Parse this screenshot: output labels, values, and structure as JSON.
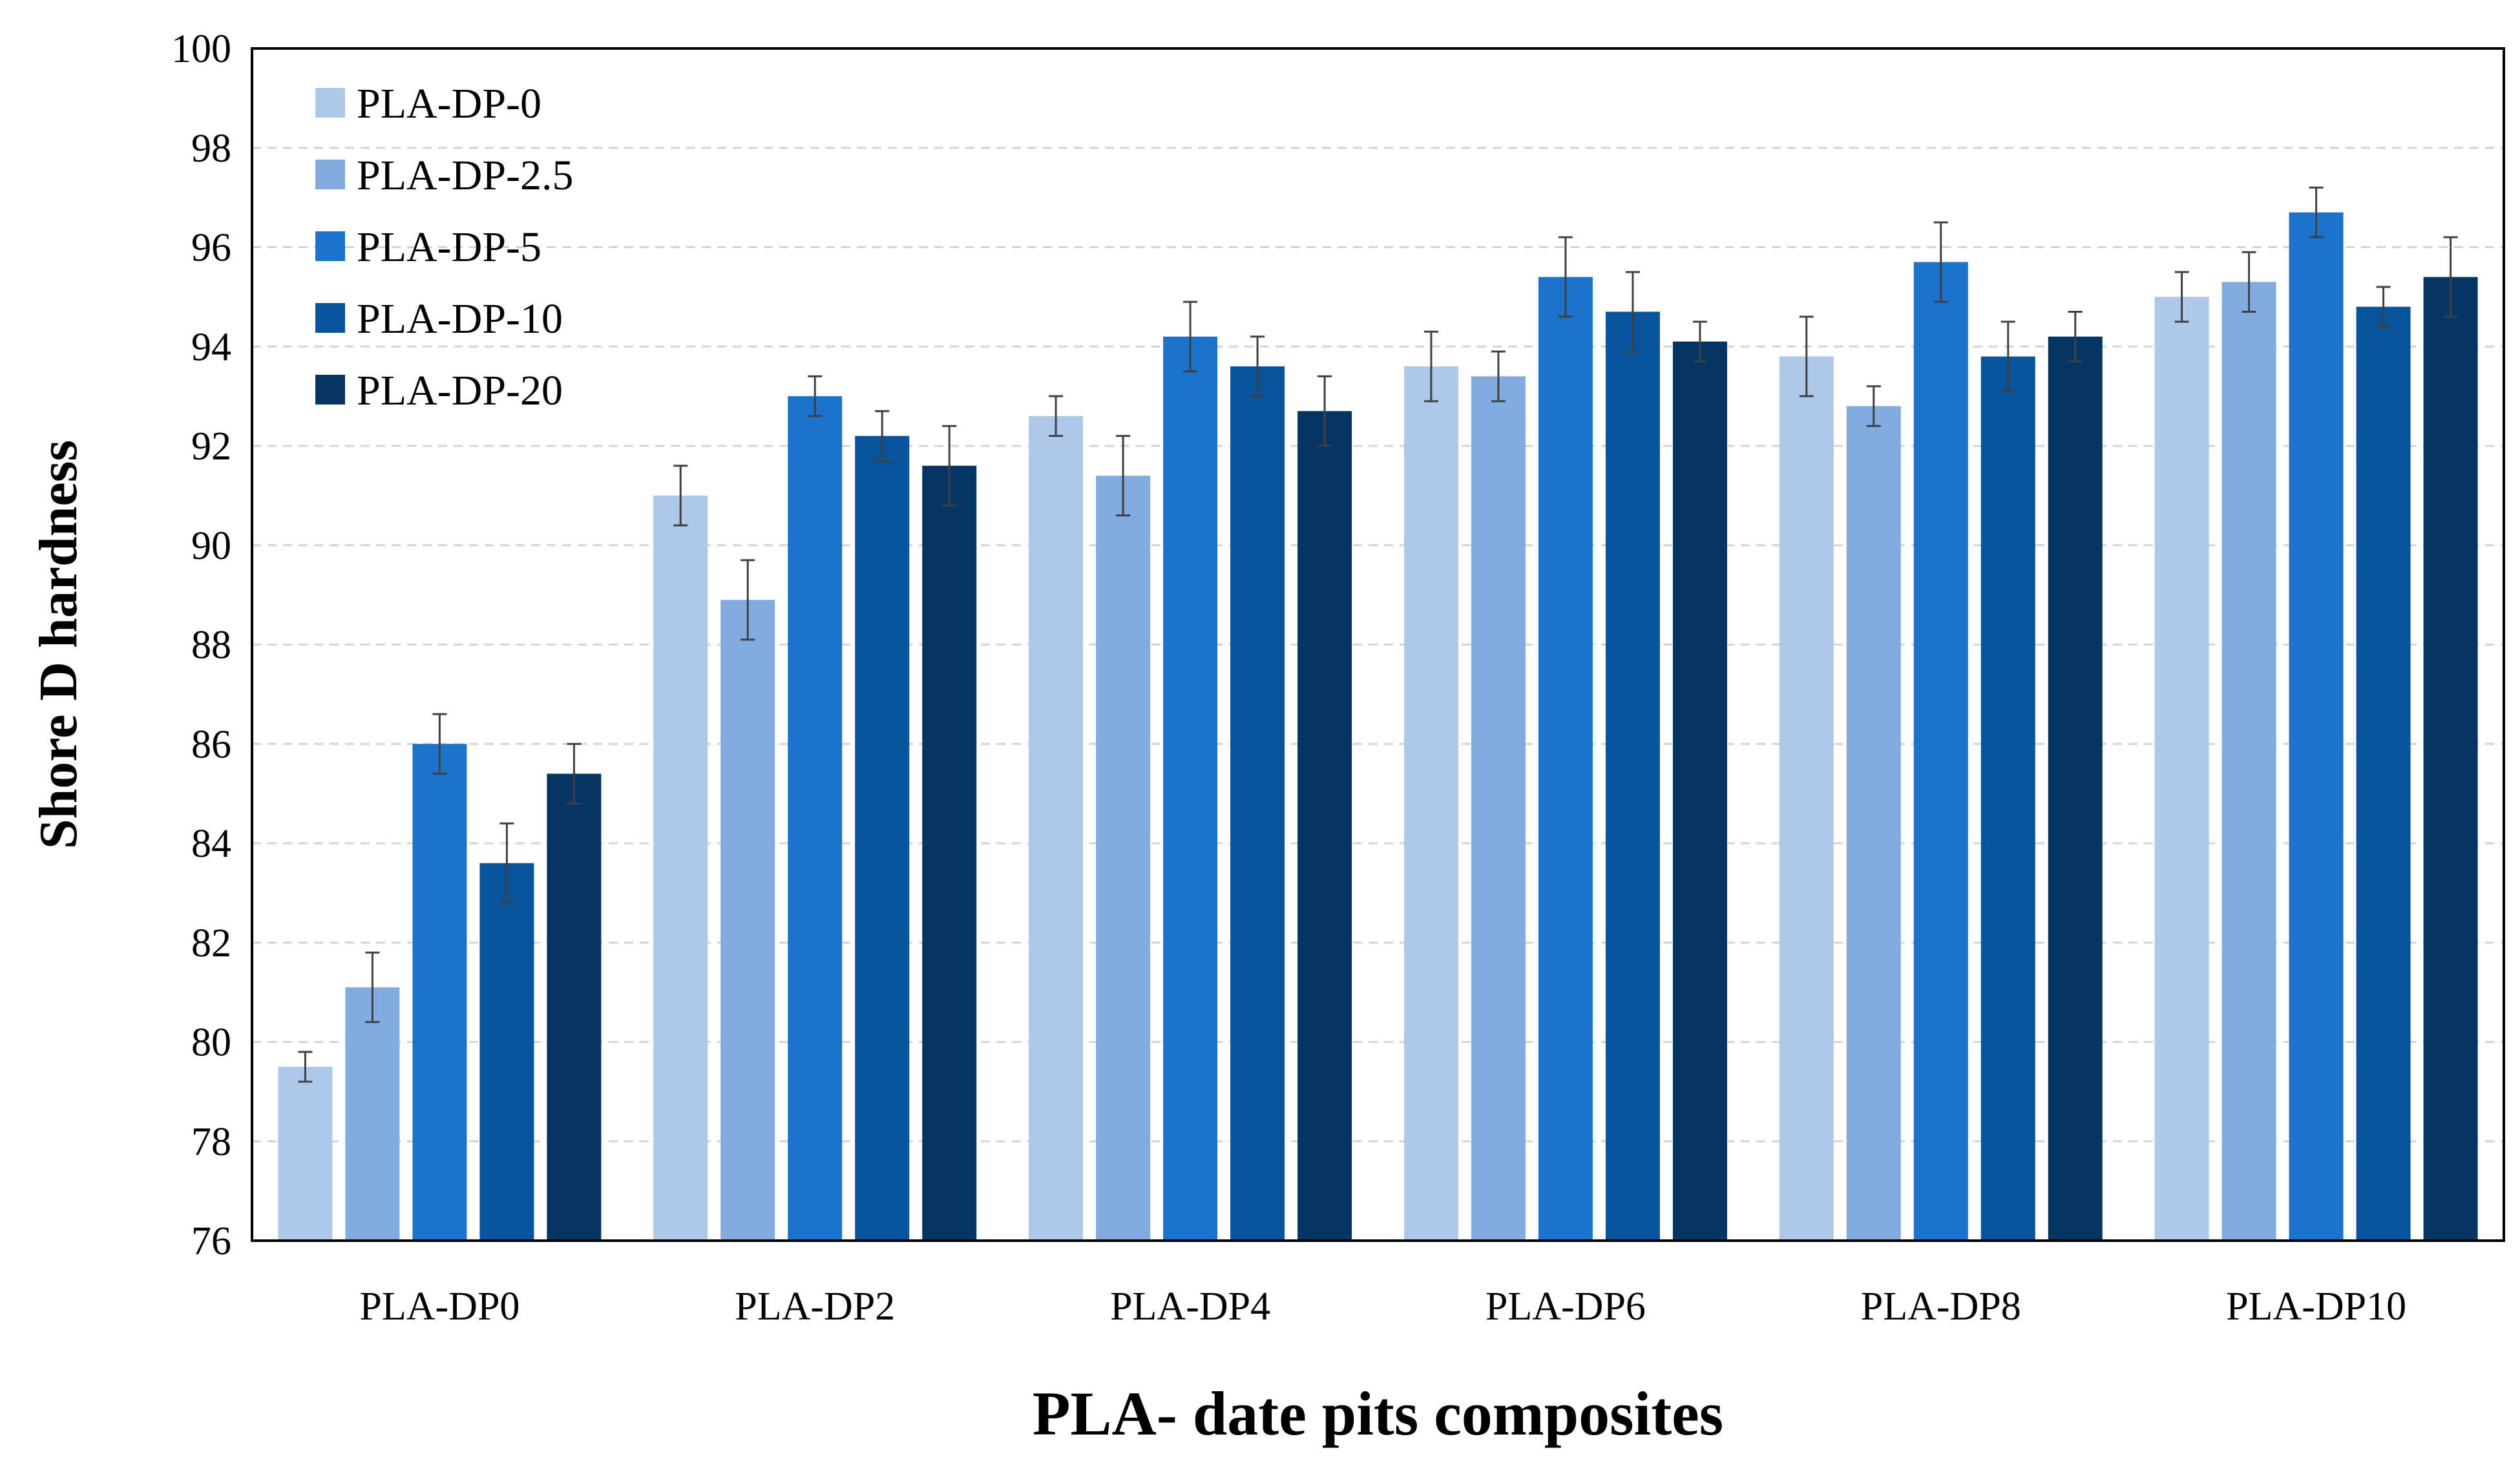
{
  "chart_data": {
    "type": "bar",
    "title": "",
    "xlabel": "PLA- date pits composites",
    "ylabel": "Shore D hardness",
    "ylim": [
      76,
      100
    ],
    "ytick_step": 2,
    "grid": true,
    "legend_position": "top-left",
    "categories": [
      "PLA-DP0",
      "PLA-DP2",
      "PLA-DP4",
      "PLA-DP6",
      "PLA-DP8",
      "PLA-DP10"
    ],
    "series": [
      {
        "name": "PLA-DP-0",
        "color": "#adc8e8",
        "values": [
          79.5,
          91.0,
          92.6,
          93.6,
          93.8,
          95.0
        ],
        "errors": [
          0.3,
          0.6,
          0.4,
          0.7,
          0.8,
          0.5
        ]
      },
      {
        "name": "PLA-DP-2.5",
        "color": "#82ace0",
        "values": [
          81.1,
          88.9,
          91.4,
          93.4,
          92.8,
          95.3
        ],
        "errors": [
          0.7,
          0.8,
          0.8,
          0.5,
          0.4,
          0.6
        ]
      },
      {
        "name": "PLA-DP-5",
        "color": "#1b73cc",
        "values": [
          86.0,
          93.0,
          94.2,
          95.4,
          95.7,
          96.7
        ],
        "errors": [
          0.6,
          0.4,
          0.7,
          0.8,
          0.8,
          0.5
        ]
      },
      {
        "name": "PLA-DP-10",
        "color": "#07539c",
        "values": [
          83.6,
          92.2,
          93.6,
          94.7,
          93.8,
          94.8
        ],
        "errors": [
          0.8,
          0.5,
          0.6,
          0.8,
          0.7,
          0.4
        ]
      },
      {
        "name": "PLA-DP-20",
        "color": "#053563",
        "values": [
          85.4,
          91.6,
          92.7,
          94.1,
          94.2,
          95.4
        ],
        "errors": [
          0.6,
          0.8,
          0.7,
          0.4,
          0.5,
          0.8
        ]
      }
    ],
    "colors": {
      "grid": "#d4d4d4",
      "axis": "#000000",
      "error_bar": "#404040"
    }
  }
}
